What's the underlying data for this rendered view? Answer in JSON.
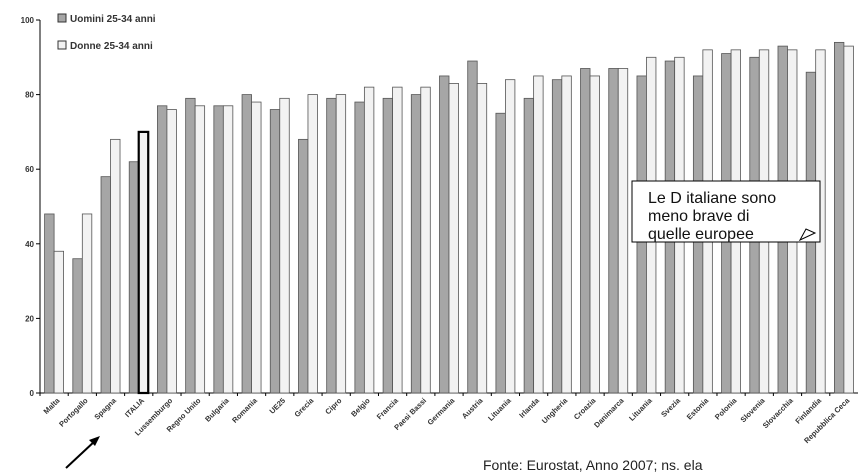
{
  "chart_data": {
    "type": "bar",
    "categories": [
      "Malta",
      "Portogallo",
      "Spagna",
      "ITALIA",
      "Lussemburgo",
      "Regno Unito",
      "Bulgaria",
      "Romania",
      "UE25",
      "Grecia",
      "Cipro",
      "Belgio",
      "Francia",
      "Paesi Bassi",
      "Germania",
      "Austria",
      "Lituania",
      "Irlanda",
      "Ungheria",
      "Croazia",
      "Danimarca",
      "Lituania",
      "Svezia",
      "Estonia",
      "Polonia",
      "Slovenia",
      "Slovacchia",
      "Finlandia",
      "Repubblica Ceca"
    ],
    "series": [
      {
        "name": "Uomini 25-34 anni",
        "color": "#a6a6a6",
        "values": [
          48,
          36,
          58,
          62,
          77,
          79,
          77,
          80,
          76,
          68,
          79,
          78,
          79,
          80,
          85,
          89,
          75,
          79,
          84,
          87,
          87,
          85,
          89,
          85,
          91,
          90,
          93,
          86,
          94
        ]
      },
      {
        "name": "Donne 25-34 anni",
        "color": "#f2f2f2",
        "values": [
          38,
          48,
          68,
          70,
          76,
          77,
          77,
          78,
          79,
          80,
          80,
          82,
          82,
          82,
          83,
          83,
          84,
          85,
          85,
          85,
          87,
          90,
          90,
          92,
          92,
          92,
          92,
          92,
          93
        ]
      }
    ],
    "highlight_category": "ITALIA",
    "yticks": [
      0,
      20,
      40,
      60,
      80,
      100
    ],
    "ylim": [
      0,
      100
    ],
    "legend_position": "top-left",
    "grid": false
  },
  "callout": {
    "lines": [
      "Le D italiane sono",
      "meno brave di",
      "quelle europee"
    ]
  },
  "source_note": "Fonte: Eurostat, Anno 2007; ns. ela"
}
